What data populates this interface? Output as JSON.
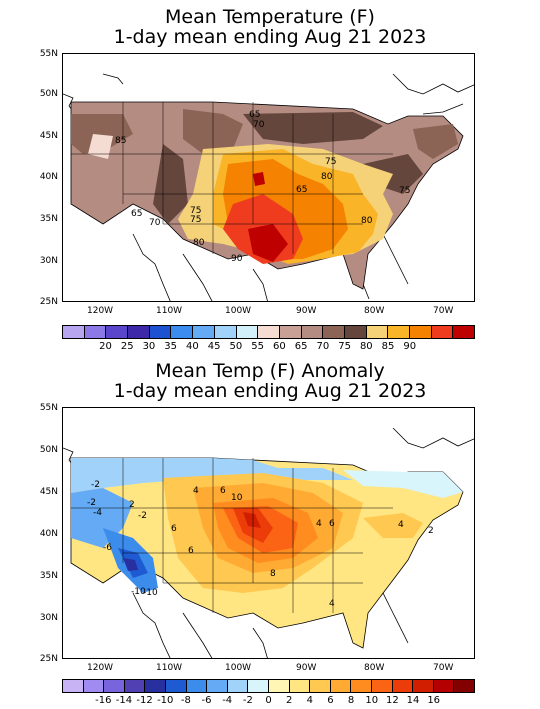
{
  "top": {
    "title_line1": "Mean Temperature (F)",
    "title_line2": "1-day mean ending Aug 21 2023",
    "lat_labels": [
      "55N",
      "50N",
      "45N",
      "40N",
      "35N",
      "30N",
      "25N"
    ],
    "lon_labels": [
      "120W",
      "110W",
      "100W",
      "90W",
      "80W",
      "70W"
    ],
    "colorbar": {
      "colors": [
        "#b7a5f0",
        "#8c78e6",
        "#5a46cc",
        "#3c28a8",
        "#1e50d2",
        "#3c8cf0",
        "#64aaf5",
        "#a0d2fa",
        "#d2f0fa",
        "#f5dcd2",
        "#c8a096",
        "#b48c82",
        "#8c6455",
        "#64463c",
        "#f5d278",
        "#fab428",
        "#f58200",
        "#f03c1e",
        "#be0000"
      ],
      "labels": [
        "20",
        "25",
        "30",
        "35",
        "40",
        "45",
        "50",
        "55",
        "60",
        "65",
        "70",
        "75",
        "80",
        "85",
        "90"
      ]
    },
    "contour_labels": [
      "65",
      "85",
      "70",
      "75",
      "65",
      "70",
      "75",
      "80",
      "80",
      "75",
      "65",
      "90",
      "75",
      "80"
    ]
  },
  "bottom": {
    "title_line1": "Mean Temp (F) Anomaly",
    "title_line2": "1-day mean ending Aug 21 2023",
    "lat_labels": [
      "55N",
      "50N",
      "45N",
      "40N",
      "35N",
      "30N",
      "25N"
    ],
    "lon_labels": [
      "120W",
      "110W",
      "100W",
      "90W",
      "80W",
      "70W"
    ],
    "colorbar": {
      "colors": [
        "#c8b4f5",
        "#a08cf0",
        "#7864dc",
        "#5040b4",
        "#2830a0",
        "#1e5ad2",
        "#3c8ceb",
        "#64aaf5",
        "#a0d2fa",
        "#d7f5fa",
        "#fff5b4",
        "#ffe682",
        "#ffc850",
        "#ffaa32",
        "#ff8c1e",
        "#fa6414",
        "#eb3c0a",
        "#d21e00",
        "#b40000",
        "#820000"
      ],
      "labels": [
        "-16",
        "-14",
        "-12",
        "-10",
        "-8",
        "-6",
        "-4",
        "-2",
        "0",
        "2",
        "4",
        "6",
        "8",
        "10",
        "12",
        "14",
        "16"
      ]
    },
    "contour_labels": [
      "-2",
      "-2",
      "-4",
      "-2",
      "-6",
      "-10",
      "-10",
      "2",
      "4",
      "6",
      "6",
      "10",
      "6",
      "4",
      "6",
      "8",
      "4",
      "4",
      "2"
    ]
  }
}
